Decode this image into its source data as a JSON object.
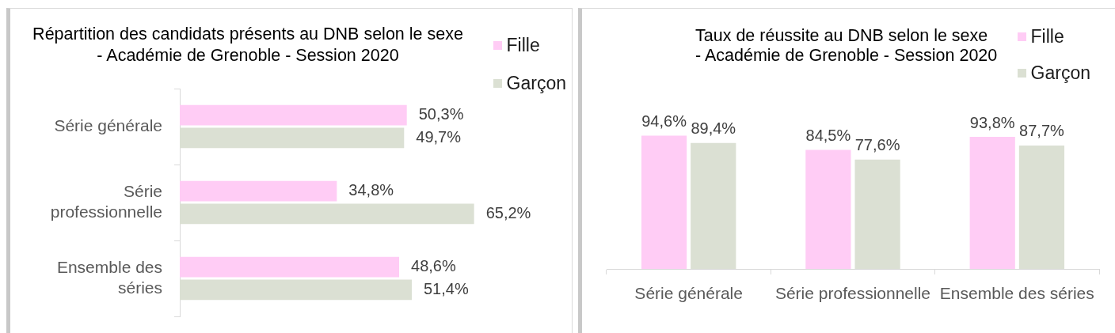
{
  "chart_data": [
    {
      "type": "bar",
      "orientation": "horizontal",
      "title": "Répartition des candidats présents au DNB selon le sexe\n- Académie de Grenoble - Session 2020",
      "categories": [
        "Série générale",
        "Série professionnelle",
        "Ensemble des séries"
      ],
      "series": [
        {
          "name": "Fille",
          "color": "#ffccf5",
          "values": [
            50.3,
            34.8,
            48.6
          ],
          "value_labels": [
            "50,3%",
            "34,8%",
            "48,6%"
          ]
        },
        {
          "name": "Garçon",
          "color": "#dbe0d3",
          "values": [
            49.7,
            65.2,
            51.4
          ],
          "value_labels": [
            "49,7%",
            "65,2%",
            "51,4%"
          ]
        }
      ],
      "tick_labels": "y",
      "legend": "top right"
    },
    {
      "type": "bar",
      "title": "Taux de réussite au DNB selon le sexe\n- Académie de Grenoble - Session 2020",
      "categories": [
        "Série générale",
        "Série professionnelle",
        "Ensemble des séries"
      ],
      "series": [
        {
          "name": "Fille",
          "color": "#ffccf5",
          "values": [
            94.6,
            84.5,
            93.8
          ],
          "value_labels": [
            "94,6%",
            "84,5%",
            "93,8%"
          ]
        },
        {
          "name": "Garçon",
          "color": "#dbe0d3",
          "values": [
            89.4,
            77.6,
            87.7
          ],
          "value_labels": [
            "89,4%",
            "77,6%",
            "87,7%"
          ]
        }
      ],
      "tick_labels": "x",
      "legend": "top right"
    }
  ]
}
